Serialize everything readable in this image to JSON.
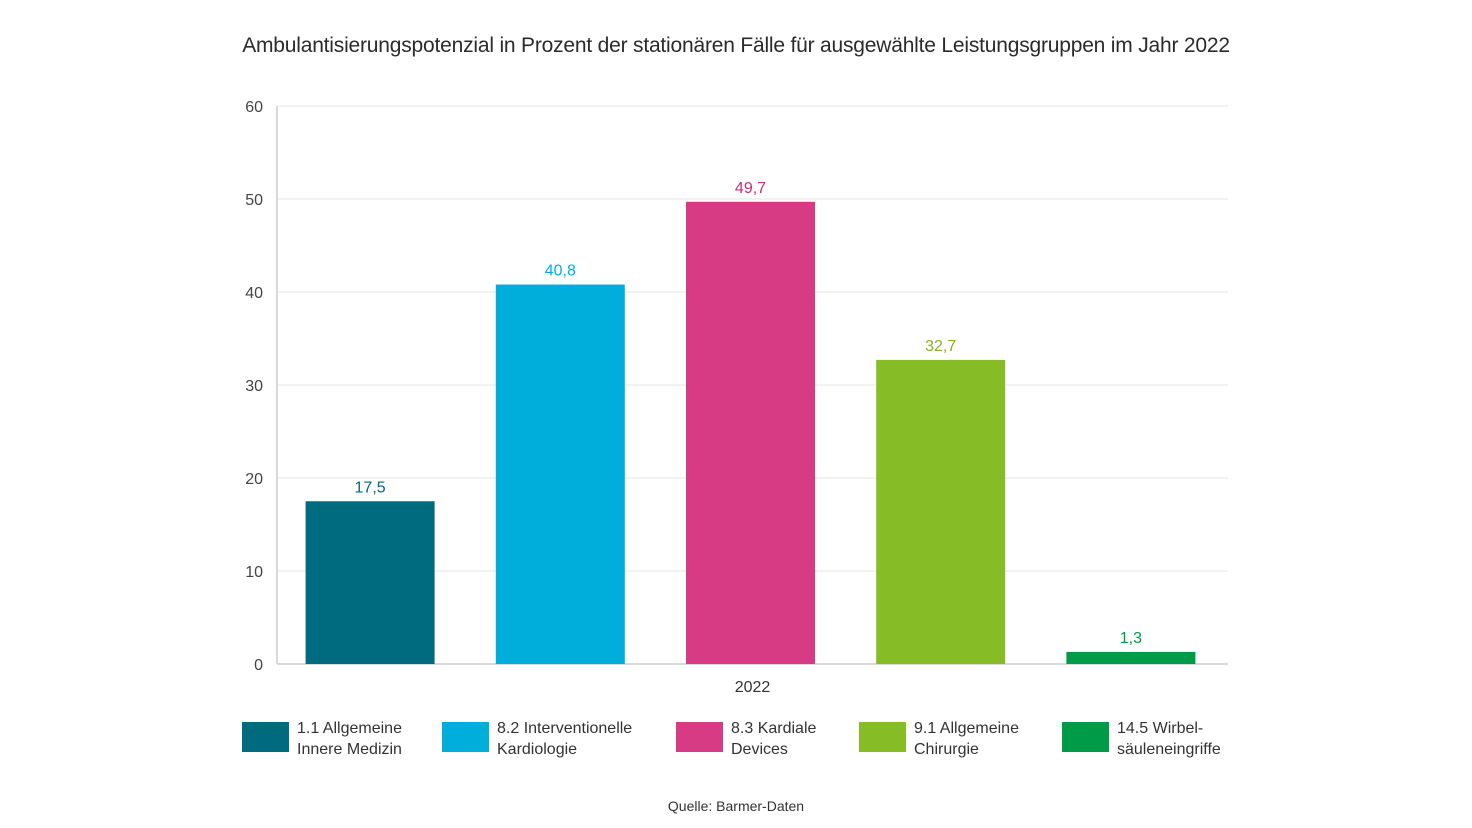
{
  "chart_data": {
    "type": "bar",
    "title": "Ambulantisierungspotenzial in Prozent der stationären Fälle für ausgewählte Leistungsgruppen im Jahr 2022",
    "xlabel": "",
    "ylabel": "",
    "x_category": "2022",
    "ylim": [
      0,
      60
    ],
    "yticks": [
      "0",
      "10",
      "20",
      "30",
      "40",
      "50",
      "60"
    ],
    "ytick_values": [
      0,
      10,
      20,
      30,
      40,
      50,
      60
    ],
    "grid": true,
    "legend_position": "bottom",
    "series": [
      {
        "name": "1.1 Allgemeine\nInnere Medizin",
        "value": 17.5,
        "label": "17,5",
        "color": "#006A7E"
      },
      {
        "name": "8.2 Interventionelle\nKardiologie",
        "value": 40.8,
        "label": "40,8",
        "color": "#00AEDB"
      },
      {
        "name": "8.3 Kardiale\nDevices",
        "value": 49.7,
        "label": "49,7",
        "color": "#D63B84"
      },
      {
        "name": "9.1 Allgemeine\nChirurgie",
        "value": 32.7,
        "label": "32,7",
        "color": "#86BC25"
      },
      {
        "name": "14.5 Wirbel-\nsäuleneingriffe",
        "value": 1.3,
        "label": "1,3",
        "color": "#009B48"
      }
    ],
    "label_colors": [
      "#006A7E",
      "#00AEDB",
      "#C4306F",
      "#86B022",
      "#009B48"
    ]
  },
  "source": "Quelle: Barmer-Daten"
}
